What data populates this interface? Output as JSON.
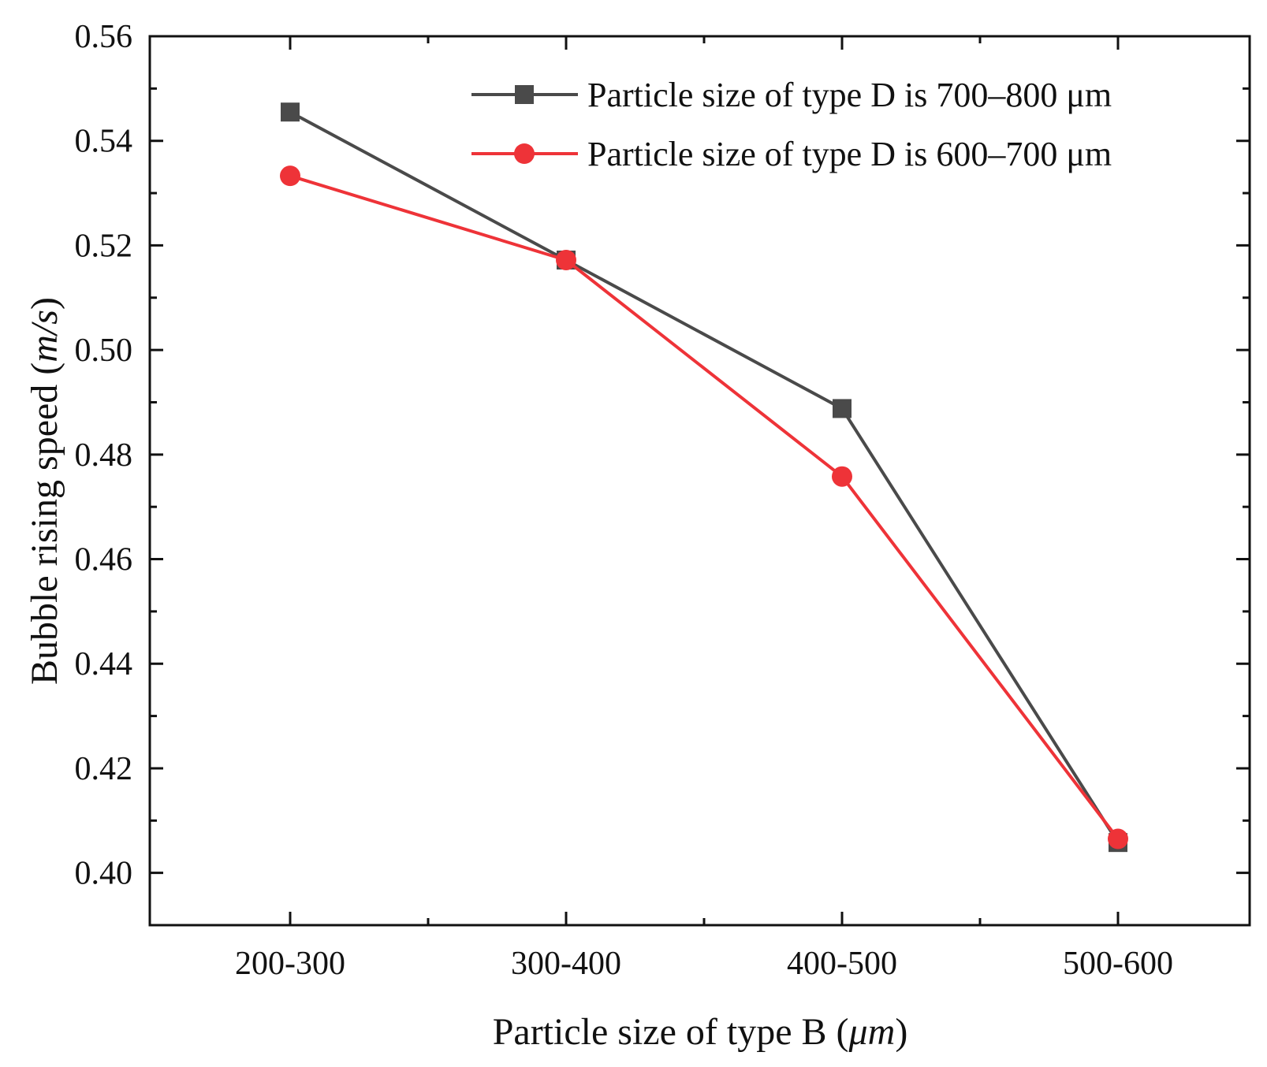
{
  "chart_data": {
    "type": "line",
    "categories": [
      "200-300",
      "300-400",
      "400-500",
      "500-600"
    ],
    "series": [
      {
        "name": "Particle size of type D is 700–800 μm",
        "marker": "square",
        "color": "#4a4a4a",
        "values": [
          0.5455,
          0.5172,
          0.4888,
          0.4058
        ]
      },
      {
        "name": "Particle size of type D is 600–700 μm",
        "marker": "circle",
        "color": "#ee3338",
        "values": [
          0.5333,
          0.5172,
          0.4758,
          0.4065
        ]
      }
    ],
    "xlabel_main": "Particle size of type B (",
    "xlabel_unit": "μm",
    "xlabel_end": ")",
    "ylabel_main": "Bubble rising speed (",
    "ylabel_unit": "m/s",
    "ylabel_end": ")",
    "ylim": [
      0.39,
      0.56
    ],
    "yticks": [
      "0.40",
      "0.42",
      "0.44",
      "0.46",
      "0.48",
      "0.50",
      "0.52",
      "0.54",
      "0.56"
    ],
    "legend_position": "top-right",
    "grid": false
  }
}
